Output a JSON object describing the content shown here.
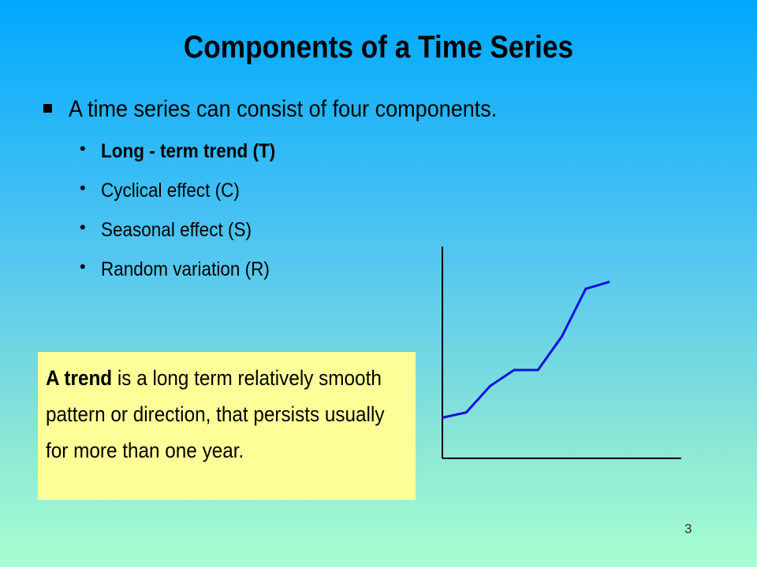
{
  "slide": {
    "title": "Components of a Time Series",
    "main_bullet": "A time series can consist of four components.",
    "sub_bullets": [
      {
        "label": "Long - term trend (T)",
        "bold": true
      },
      {
        "label": "Cyclical effect (C)",
        "bold": false
      },
      {
        "label": "Seasonal effect (S)",
        "bold": false
      },
      {
        "label": "Random variation (R)",
        "bold": false
      }
    ],
    "callout": {
      "bold_term": "A trend",
      "text": " is a long term relatively smooth pattern or direction, that persists usually for more than one year."
    },
    "page_number": "3"
  },
  "colors": {
    "background_top": "#00a8ff",
    "background_bottom": "#a6ffd1",
    "callout_fill": "#ffff99",
    "trend_line": "#1010e0"
  },
  "chart_data": {
    "type": "line",
    "title": "",
    "xlabel": "",
    "ylabel": "",
    "x": [
      0,
      1,
      2,
      3,
      4,
      5,
      6,
      7
    ],
    "values": [
      2.3,
      2.6,
      4.1,
      5.0,
      5.0,
      6.9,
      9.6,
      10.0
    ],
    "xlim": [
      0,
      10
    ],
    "ylim": [
      0,
      12
    ],
    "grid": false,
    "legend": "none"
  }
}
